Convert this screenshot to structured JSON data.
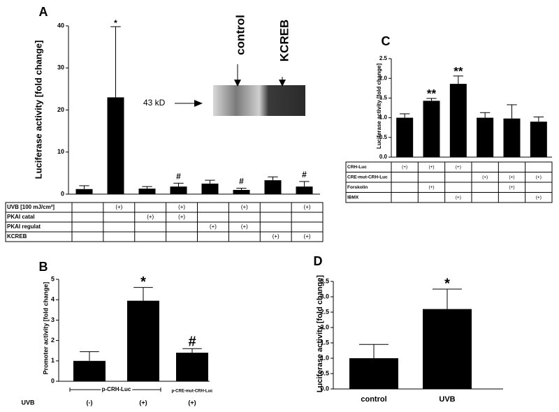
{
  "chart_data": [
    {
      "type": "bar",
      "label": "A",
      "ylabel": "Luciferase activity [fold change]",
      "color": "#000000",
      "values": [
        1.2,
        23,
        1.3,
        1.8,
        2.5,
        1.0,
        3.3,
        1.8
      ],
      "errors": [
        0.8,
        16.8,
        0.5,
        0.8,
        0.8,
        0.4,
        0.8,
        1.2
      ],
      "markers": [
        null,
        "*",
        null,
        "#",
        null,
        "#",
        null,
        "#"
      ],
      "ylim": [
        0,
        40
      ],
      "yticks": [
        0,
        10,
        20,
        30,
        40
      ],
      "inset": {
        "lanes": [
          "control",
          "KCREB"
        ],
        "size_label": "43 kD"
      },
      "table": [
        {
          "label": "UVB [100 mJ/cm²]",
          "cells": [
            null,
            "(+)",
            null,
            "(+)",
            null,
            "(+)",
            null,
            "(+)"
          ]
        },
        {
          "label": "PKAI catal",
          "cells": [
            null,
            null,
            "(+)",
            "(+)",
            null,
            null,
            null,
            null
          ]
        },
        {
          "label": "PKAI regulat",
          "cells": [
            null,
            null,
            null,
            null,
            "(+)",
            "(+)",
            null,
            null
          ]
        },
        {
          "label": "KCREB",
          "cells": [
            null,
            null,
            null,
            null,
            null,
            null,
            "(+)",
            "(+)"
          ]
        }
      ]
    },
    {
      "type": "bar",
      "label": "B",
      "ylabel": "Promoter activity [fold change]",
      "color": "#000000",
      "values": [
        1.0,
        3.95,
        1.4
      ],
      "errors": [
        0.45,
        0.65,
        0.2
      ],
      "markers": [
        null,
        "*",
        "#"
      ],
      "ylim": [
        0,
        5
      ],
      "yticks": [
        0,
        1,
        2,
        3,
        4,
        5
      ],
      "group_labels": [
        "p-CRH-Luc",
        "p-CRE-mut-CRH-Luc"
      ],
      "condition_row": {
        "label": "UVB",
        "cells": [
          "(-)",
          "(+)",
          "(+)"
        ]
      }
    },
    {
      "type": "bar",
      "label": "C",
      "ylabel": "Luciferase activity [fold change]",
      "color": "#000000",
      "values": [
        1.0,
        1.43,
        1.86,
        1.0,
        0.98,
        0.9
      ],
      "errors": [
        0.1,
        0.06,
        0.2,
        0.13,
        0.35,
        0.12
      ],
      "markers": [
        null,
        "**",
        "**",
        null,
        null,
        null
      ],
      "ylim": [
        0,
        2.5
      ],
      "yticks": [
        {
          "value": 0,
          "label": "0.0"
        },
        {
          "value": 0.5,
          "label": "0.5"
        },
        {
          "value": 1,
          "label": "1.0"
        },
        {
          "value": 1.5,
          "label": "1.5"
        },
        {
          "value": 2,
          "label": "2.0"
        },
        {
          "value": 2.5,
          "label": "2.5"
        }
      ],
      "table": [
        {
          "label": "CRH-Luc",
          "cells": [
            "(+)",
            "(+)",
            "(+)",
            null,
            null,
            null
          ]
        },
        {
          "label": "CRE-mut-CRH-Luc",
          "cells": [
            null,
            null,
            null,
            "(+)",
            "(+)",
            "(+)"
          ]
        },
        {
          "label": "Forskolin",
          "cells": [
            null,
            "(+)",
            null,
            null,
            "(+)",
            null
          ]
        },
        {
          "label": "IBMX",
          "cells": [
            null,
            null,
            "(+)",
            null,
            null,
            "(+)"
          ]
        }
      ]
    },
    {
      "type": "bar",
      "label": "D",
      "ylabel": "Luciferase activity [fold change]",
      "color": "#000000",
      "categories": [
        "control",
        "UVB"
      ],
      "values": [
        1.0,
        2.6
      ],
      "errors": [
        0.45,
        0.65
      ],
      "markers": [
        null,
        "*"
      ],
      "ylim": [
        0,
        3.5
      ],
      "yticks": [
        {
          "value": 0,
          "label": "0.0"
        },
        {
          "value": 0.5,
          "label": "0.5"
        },
        {
          "value": 1,
          "label": "1.0"
        },
        {
          "value": 1.5,
          "label": "1.5"
        },
        {
          "value": 2,
          "label": "2.0"
        },
        {
          "value": 2.5,
          "label": "2.5"
        },
        {
          "value": 3,
          "label": "3.0"
        },
        {
          "value": 3.5,
          "label": "3.5"
        }
      ]
    }
  ]
}
